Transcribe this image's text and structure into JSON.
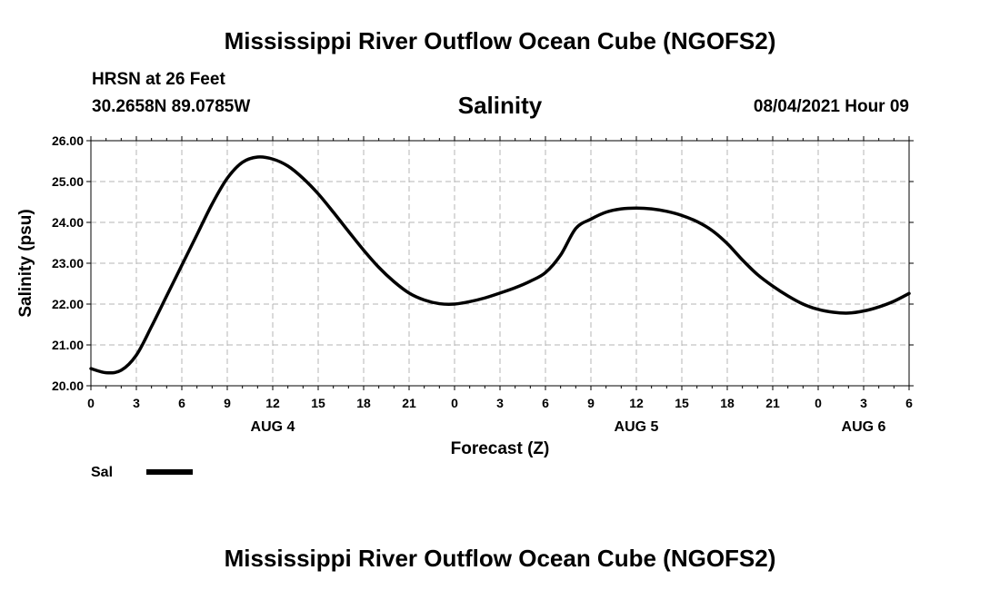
{
  "header": {
    "title": "Mississippi River Outflow Ocean Cube (NGOFS2)",
    "station": "HRSN at 26 Feet",
    "coords": "30.2658N  89.0785W",
    "chart_title": "Salinity",
    "datetime": "08/04/2021 Hour 09"
  },
  "footer": {
    "title": "Mississippi River Outflow Ocean Cube (NGOFS2)"
  },
  "legend": {
    "label": "Sal"
  },
  "chart_data": {
    "type": "line",
    "title": "Salinity",
    "xlabel": "Forecast (Z)",
    "ylabel": "Salinity (psu)",
    "xlim": [
      0,
      54
    ],
    "ylim": [
      20.0,
      26.0
    ],
    "grid": true,
    "legend_position": "bottom-left",
    "x_tick_values": [
      0,
      3,
      6,
      9,
      12,
      15,
      18,
      21,
      24,
      27,
      30,
      33,
      36,
      39,
      42,
      45,
      48,
      51,
      54
    ],
    "x_tick_labels": [
      "0",
      "3",
      "6",
      "9",
      "12",
      "15",
      "18",
      "21",
      "0",
      "3",
      "6",
      "9",
      "12",
      "15",
      "18",
      "21",
      "0",
      "3",
      "6"
    ],
    "y_tick_values": [
      20,
      21,
      22,
      23,
      24,
      25,
      26
    ],
    "y_tick_labels": [
      "20.00",
      "21.00",
      "22.00",
      "23.00",
      "24.00",
      "25.00",
      "26.00"
    ],
    "date_labels": [
      {
        "x": 12,
        "label": "AUG 4"
      },
      {
        "x": 36,
        "label": "AUG 5"
      },
      {
        "x": 51,
        "label": "AUG 6"
      }
    ],
    "series": [
      {
        "name": "Sal",
        "color": "#000000",
        "x": [
          0,
          1,
          2,
          3,
          4,
          5,
          6,
          7,
          8,
          9,
          10,
          11,
          12,
          13,
          14,
          15,
          16,
          17,
          18,
          19,
          20,
          21,
          22,
          23,
          24,
          25,
          26,
          27,
          28,
          29,
          30,
          31,
          32,
          33,
          34,
          35,
          36,
          37,
          38,
          39,
          40,
          41,
          42,
          43,
          44,
          45,
          46,
          47,
          48,
          49,
          50,
          51,
          52,
          53,
          54
        ],
        "values": [
          20.42,
          20.32,
          20.38,
          20.75,
          21.45,
          22.2,
          22.95,
          23.7,
          24.45,
          25.08,
          25.47,
          25.6,
          25.55,
          25.38,
          25.08,
          24.7,
          24.25,
          23.78,
          23.32,
          22.9,
          22.55,
          22.27,
          22.1,
          22.01,
          22.0,
          22.06,
          22.15,
          22.27,
          22.4,
          22.56,
          22.77,
          23.2,
          23.85,
          24.08,
          24.25,
          24.33,
          24.35,
          24.33,
          24.27,
          24.17,
          24.02,
          23.8,
          23.48,
          23.08,
          22.72,
          22.44,
          22.2,
          22.0,
          21.87,
          21.8,
          21.78,
          21.83,
          21.93,
          22.07,
          22.26
        ]
      }
    ]
  }
}
